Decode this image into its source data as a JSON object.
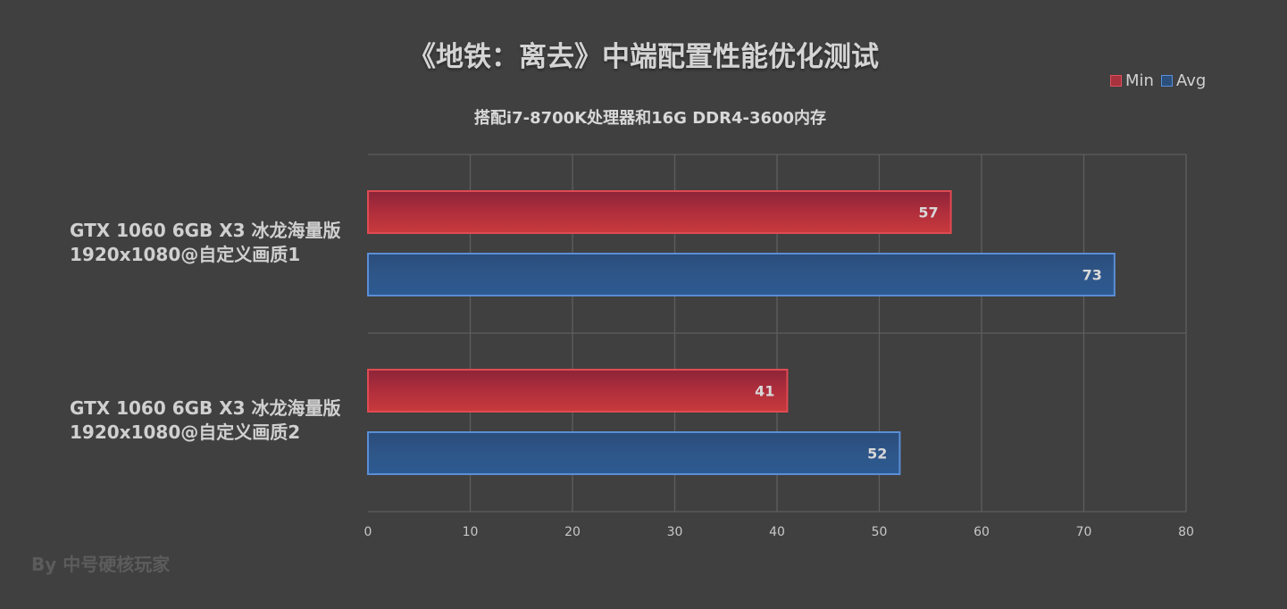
{
  "chart_data": {
    "type": "bar",
    "orientation": "horizontal",
    "title": "《地铁：离去》中端配置性能优化测试",
    "subtitle": "搭配i7-8700K处理器和16G DDR4-3600内存",
    "categories": [
      [
        "GTX 1060 6GB X3 冰龙海量版",
        "1920x1080@自定义画质1"
      ],
      [
        "GTX 1060 6GB X3 冰龙海量版",
        "1920x1080@自定义画质2"
      ]
    ],
    "series": [
      {
        "name": "Min",
        "values": [
          57,
          41
        ],
        "color": "#c0303c"
      },
      {
        "name": "Avg",
        "values": [
          73,
          52
        ],
        "color": "#2c5a92"
      }
    ],
    "xlim": [
      0,
      80
    ],
    "xticks": [
      "0",
      "10",
      "20",
      "30",
      "40",
      "50",
      "60",
      "70",
      "80"
    ],
    "grid": true,
    "legend": "top-right",
    "credit": "By 中号硬核玩家"
  }
}
